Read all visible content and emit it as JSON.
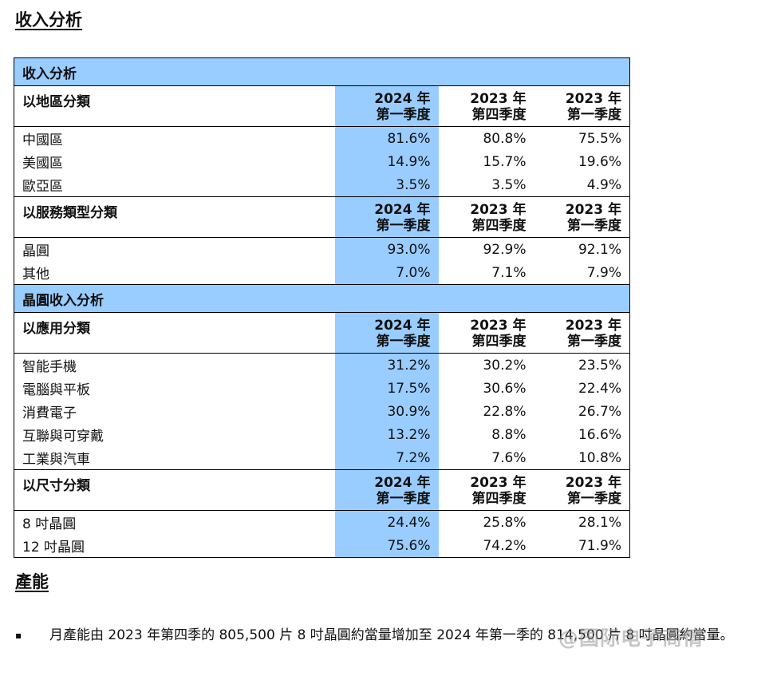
{
  "section1_title": "收入分析",
  "section2_title": "產能",
  "table": {
    "title": "收入分析",
    "quarter_headers": [
      {
        "year": "2024 年",
        "quarter": "第一季度"
      },
      {
        "year": "2023 年",
        "quarter": "第四季度"
      },
      {
        "year": "2023 年",
        "quarter": "第一季度"
      }
    ],
    "geo_header": "以地區分類",
    "geo_rows": [
      {
        "label": "中國區",
        "v": [
          "81.6%",
          "80.8%",
          "75.5%"
        ]
      },
      {
        "label": "美國區",
        "v": [
          "14.9%",
          "15.7%",
          "19.6%"
        ]
      },
      {
        "label": "歐亞區",
        "v": [
          "3.5%",
          "3.5%",
          "4.9%"
        ]
      }
    ],
    "service_header": "以服務類型分類",
    "service_rows": [
      {
        "label": "晶圓",
        "v": [
          "93.0%",
          "92.9%",
          "92.1%"
        ]
      },
      {
        "label": "其他",
        "v": [
          "7.0%",
          "7.1%",
          "7.9%"
        ]
      }
    ],
    "wafer_section": "晶圓收入分析",
    "app_header": "以應用分類",
    "app_rows": [
      {
        "label": "智能手機",
        "v": [
          "31.2%",
          "30.2%",
          "23.5%"
        ]
      },
      {
        "label": "電腦與平板",
        "v": [
          "17.5%",
          "30.6%",
          "22.4%"
        ]
      },
      {
        "label": "消費電子",
        "v": [
          "30.9%",
          "22.8%",
          "26.7%"
        ]
      },
      {
        "label": "互聯與可穿戴",
        "v": [
          "13.2%",
          "8.8%",
          "16.6%"
        ]
      },
      {
        "label": "工業與汽車",
        "v": [
          "7.2%",
          "7.6%",
          "10.8%"
        ]
      }
    ],
    "size_header": "以尺寸分類",
    "size_rows": [
      {
        "label": "8 吋晶圓",
        "v": [
          "24.4%",
          "25.8%",
          "28.1%"
        ]
      },
      {
        "label": "12 吋晶圓",
        "v": [
          "75.6%",
          "74.2%",
          "71.9%"
        ]
      }
    ]
  },
  "bullet": {
    "marker": "▪",
    "text": "月產能由 2023 年第四季的 805,500 片 8 吋晶圓約當量增加至 2024 年第一季的 814,500 片 8 吋晶圓約當量。"
  },
  "watermark": "@国际电子商情",
  "colors": {
    "highlight": "#99ccff"
  }
}
